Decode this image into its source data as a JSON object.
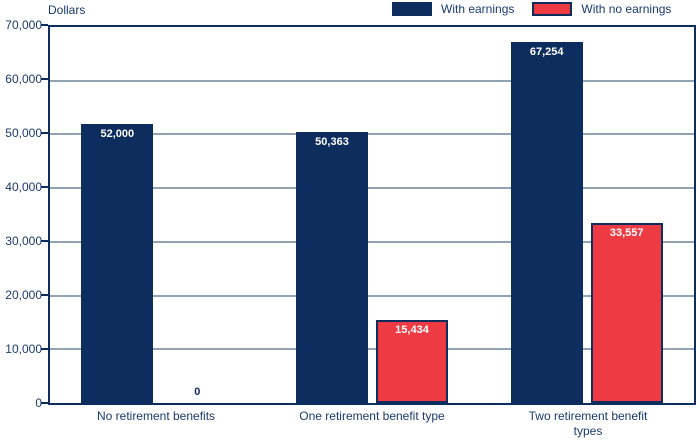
{
  "colors": {
    "navy": "#0d2d5e",
    "red": "#ee3a43",
    "gridline": "#91a3b0",
    "axis_text": "#1a3a6e",
    "bar_value_text": "#ffffff",
    "background": "#ffffff"
  },
  "chart_data": {
    "type": "bar",
    "title": "",
    "ylabel": "Dollars",
    "xlabel": "",
    "grid": true,
    "legend_position": "top-right",
    "ylim": [
      0,
      70000
    ],
    "yticks": [
      {
        "value": 0,
        "label": "0"
      },
      {
        "value": 10000,
        "label": "10,000"
      },
      {
        "value": 20000,
        "label": "20,000"
      },
      {
        "value": 30000,
        "label": "30,000"
      },
      {
        "value": 40000,
        "label": "40,000"
      },
      {
        "value": 50000,
        "label": "50,000"
      },
      {
        "value": 60000,
        "label": "60,000"
      },
      {
        "value": 70000,
        "label": "70,000"
      }
    ],
    "categories": [
      "No retirement benefits",
      "One retirement benefit type",
      "Two retirement benefit types"
    ],
    "series": [
      {
        "name": "With earnings",
        "color": "#0d2d5e",
        "values": [
          52000,
          50363,
          67254
        ],
        "labels": [
          "52,000",
          "50,363",
          "67,254"
        ]
      },
      {
        "name": "With no earnings",
        "color": "#ee3a43",
        "values": [
          0,
          15434,
          33557
        ],
        "labels": [
          "0",
          "15,434",
          "33,557"
        ]
      }
    ]
  }
}
